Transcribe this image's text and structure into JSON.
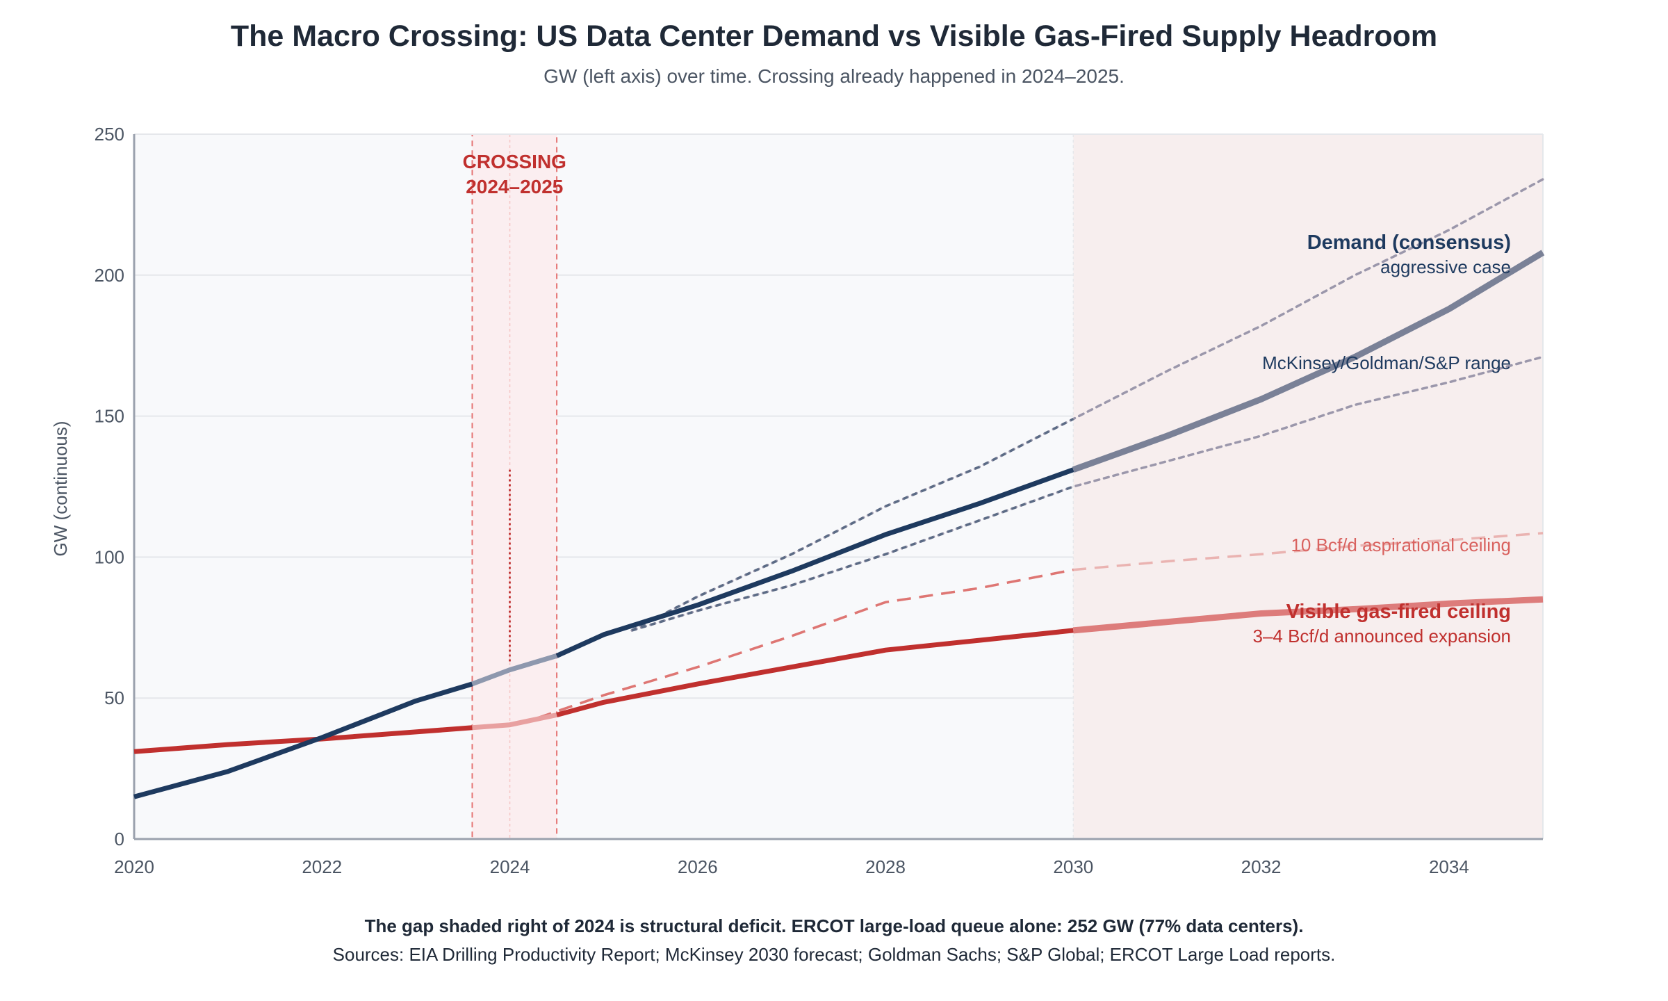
{
  "chart_data": {
    "type": "line",
    "title": "The Macro Crossing: US Data Center Demand vs Visible Gas-Fired Supply Headroom",
    "subtitle": "GW (left axis) over time. Crossing already happened in 2024–2025.",
    "ylabel": "GW (continuous)",
    "xlabel": "",
    "xlim": [
      2020,
      2035
    ],
    "ylim": [
      0,
      250
    ],
    "x_ticks": [
      "2020",
      "2022",
      "2024",
      "2026",
      "2028",
      "2030",
      "2032",
      "2034"
    ],
    "y_ticks": [
      "0",
      "50",
      "100",
      "150",
      "200",
      "250"
    ],
    "grid": "horizontal",
    "series": [
      {
        "name": "Demand (consensus)",
        "color": "#1e3a5f",
        "style": "solid",
        "points": [
          [
            2020,
            15
          ],
          [
            2021,
            24
          ],
          [
            2022,
            36
          ],
          [
            2023,
            49
          ],
          [
            2023.6,
            55
          ],
          [
            2024,
            60
          ],
          [
            2024.5,
            65
          ],
          [
            2025,
            72.5
          ],
          [
            2026,
            83
          ],
          [
            2027,
            95
          ],
          [
            2028,
            108
          ],
          [
            2029,
            119
          ],
          [
            2030,
            131
          ],
          [
            2031,
            143
          ],
          [
            2032,
            156
          ],
          [
            2033,
            171
          ],
          [
            2034,
            188
          ],
          [
            2035,
            208
          ]
        ]
      },
      {
        "name": "Visible gas-fired ceiling",
        "color": "#c0302e",
        "style": "solid",
        "points": [
          [
            2020,
            31
          ],
          [
            2021,
            33.5
          ],
          [
            2022,
            35.5
          ],
          [
            2023,
            38
          ],
          [
            2023.6,
            39.5
          ],
          [
            2024,
            40.5
          ],
          [
            2024.5,
            44
          ],
          [
            2025,
            48.5
          ],
          [
            2026,
            55
          ],
          [
            2027,
            61
          ],
          [
            2028,
            67
          ],
          [
            2029,
            70.5
          ],
          [
            2030,
            74
          ],
          [
            2031,
            77
          ],
          [
            2032,
            80
          ],
          [
            2033,
            81.5
          ],
          [
            2034,
            83.5
          ],
          [
            2035,
            85
          ]
        ]
      },
      {
        "name": "aggressive case",
        "color": "#5b6b85",
        "style": "dotted",
        "points": [
          [
            2025.3,
            74
          ],
          [
            2026,
            86
          ],
          [
            2027,
            101
          ],
          [
            2028,
            118
          ],
          [
            2029,
            132
          ],
          [
            2030,
            149
          ],
          [
            2031,
            166
          ],
          [
            2032,
            182
          ],
          [
            2033,
            200
          ],
          [
            2034,
            216
          ],
          [
            2035,
            234
          ]
        ]
      },
      {
        "name": "McKinsey/Goldman/S&P range",
        "color": "#5b6b85",
        "style": "dotted",
        "points": [
          [
            2025.3,
            74
          ],
          [
            2026,
            81
          ],
          [
            2027,
            90
          ],
          [
            2028,
            101
          ],
          [
            2029,
            113
          ],
          [
            2030,
            125
          ],
          [
            2031,
            134
          ],
          [
            2032,
            143
          ],
          [
            2033,
            154
          ],
          [
            2034,
            162
          ],
          [
            2035,
            171
          ]
        ]
      },
      {
        "name": "10 Bcf/d aspirational ceiling",
        "color": "#d9625f",
        "style": "dashed",
        "points": [
          [
            2024.3,
            43
          ],
          [
            2025,
            51
          ],
          [
            2026,
            61
          ],
          [
            2027,
            72
          ],
          [
            2028,
            84
          ],
          [
            2029,
            89
          ],
          [
            2030,
            95.5
          ],
          [
            2031,
            98.5
          ],
          [
            2032,
            101
          ],
          [
            2033,
            104
          ],
          [
            2034,
            106
          ],
          [
            2035,
            108.5
          ]
        ]
      }
    ],
    "annotations": {
      "crossing_label_1": "CROSSING",
      "crossing_label_2": "2024–2025",
      "crossing_band": [
        2023.6,
        2024.5
      ],
      "deficit_region_from": 2030,
      "demand_label": "Demand (consensus)",
      "demand_sublabel": "aggressive case",
      "range_label": "McKinsey/Goldman/S&P range",
      "aspirational_label": "10 Bcf/d aspirational ceiling",
      "ceiling_label": "Visible gas-fired ceiling",
      "ceiling_sublabel": "3–4 Bcf/d announced expansion",
      "gap_marker": [
        2024,
        63,
        131
      ]
    }
  },
  "footer": {
    "note": "The gap shaded right of 2024 is structural deficit. ERCOT large-load queue alone: 252 GW (77% data centers).",
    "sources": "Sources: EIA Drilling Productivity Report; McKinsey 2030 forecast; Goldman Sachs; S&P Global; ERCOT Large Load reports."
  },
  "colors": {
    "demand": "#1e3a5f",
    "supply": "#c0302e",
    "range": "#5b6b85",
    "aspirational": "#d9625f",
    "deficit_fill": "#f7eeee",
    "plot_bg": "#f8f9fb"
  }
}
